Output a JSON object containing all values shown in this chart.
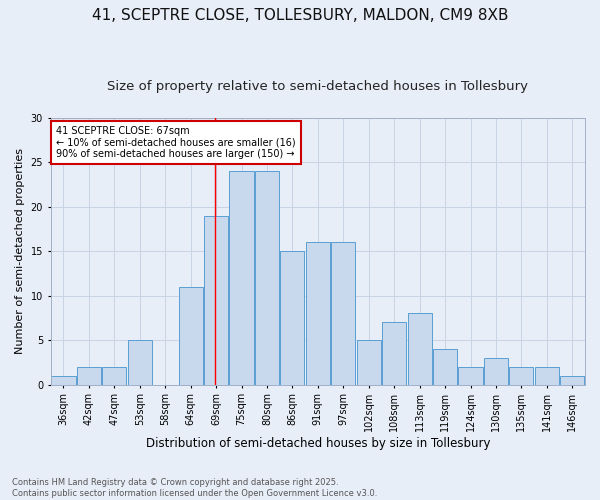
{
  "title_line1": "41, SCEPTRE CLOSE, TOLLESBURY, MALDON, CM9 8XB",
  "title_line2": "Size of property relative to semi-detached houses in Tollesbury",
  "xlabel": "Distribution of semi-detached houses by size in Tollesbury",
  "ylabel": "Number of semi-detached properties",
  "bin_labels": [
    "36sqm",
    "42sqm",
    "47sqm",
    "53sqm",
    "58sqm",
    "64sqm",
    "69sqm",
    "75sqm",
    "80sqm",
    "86sqm",
    "91sqm",
    "97sqm",
    "102sqm",
    "108sqm",
    "113sqm",
    "119sqm",
    "124sqm",
    "130sqm",
    "135sqm",
    "141sqm",
    "146sqm"
  ],
  "counts": [
    1,
    2,
    2,
    5,
    0,
    11,
    19,
    24,
    24,
    15,
    16,
    16,
    5,
    7,
    8,
    4,
    2,
    3,
    2,
    2,
    1
  ],
  "bar_color": "#c8d9ee",
  "bar_edge_color": "#5a9fd4",
  "grid_color": "#c8d4e4",
  "background_color": "#e8eef8",
  "red_line_bin_index": 6,
  "annotation_text": "41 SCEPTRE CLOSE: 67sqm\n← 10% of semi-detached houses are smaller (16)\n90% of semi-detached houses are larger (150) →",
  "annotation_box_color": "#ffffff",
  "annotation_box_edge": "#cc0000",
  "ylim": [
    0,
    30
  ],
  "yticks": [
    0,
    5,
    10,
    15,
    20,
    25,
    30
  ],
  "footer": "Contains HM Land Registry data © Crown copyright and database right 2025.\nContains public sector information licensed under the Open Government Licence v3.0.",
  "title_fontsize": 11,
  "subtitle_fontsize": 9.5,
  "ylabel_fontsize": 8,
  "xlabel_fontsize": 8.5,
  "tick_fontsize": 7,
  "annotation_fontsize": 7,
  "footer_fontsize": 6
}
